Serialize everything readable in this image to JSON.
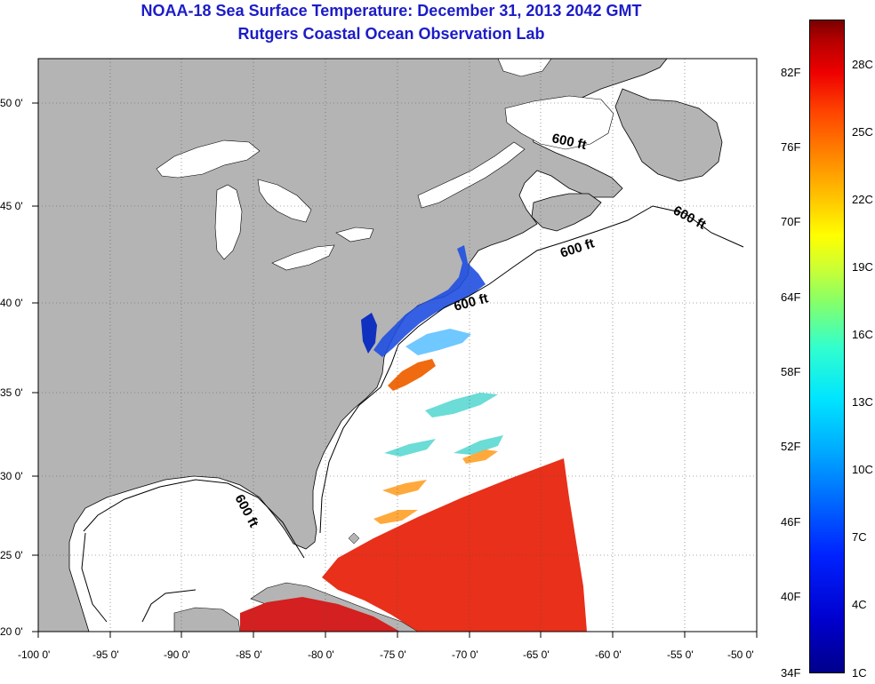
{
  "title": "NOAA-18 Sea Surface Temperature:  December 31, 2013 2042 GMT",
  "subtitle": "Rutgers Coastal Ocean Observation Lab",
  "axes": {
    "lon_labels": [
      "-100 0'",
      "-95 0'",
      "-90 0'",
      "-85 0'",
      "-80 0'",
      "-75 0'",
      "-70 0'",
      "-65 0'",
      "-60 0'",
      "-55 0'",
      "-50 0'"
    ],
    "lat_labels": [
      "20 0'",
      "25 0'",
      "30 0'",
      "35 0'",
      "40 0'",
      "45 0'",
      "50 0'"
    ],
    "lon_range": [
      -100,
      -50
    ],
    "lat_range": [
      20,
      52.5
    ],
    "grid": true
  },
  "contours": {
    "depth_label": "600 ft",
    "label_count": 5
  },
  "colorbar": {
    "fahrenheit": [
      "34F",
      "40F",
      "46F",
      "52F",
      "58F",
      "64F",
      "70F",
      "76F",
      "82F"
    ],
    "celsius": [
      "1C",
      "4C",
      "7C",
      "10C",
      "13C",
      "16C",
      "19C",
      "22C",
      "25C",
      "28C"
    ]
  },
  "colors": {
    "title": "#1c1cc8",
    "land": "#b4b4b4",
    "sea": "#ffffff"
  }
}
